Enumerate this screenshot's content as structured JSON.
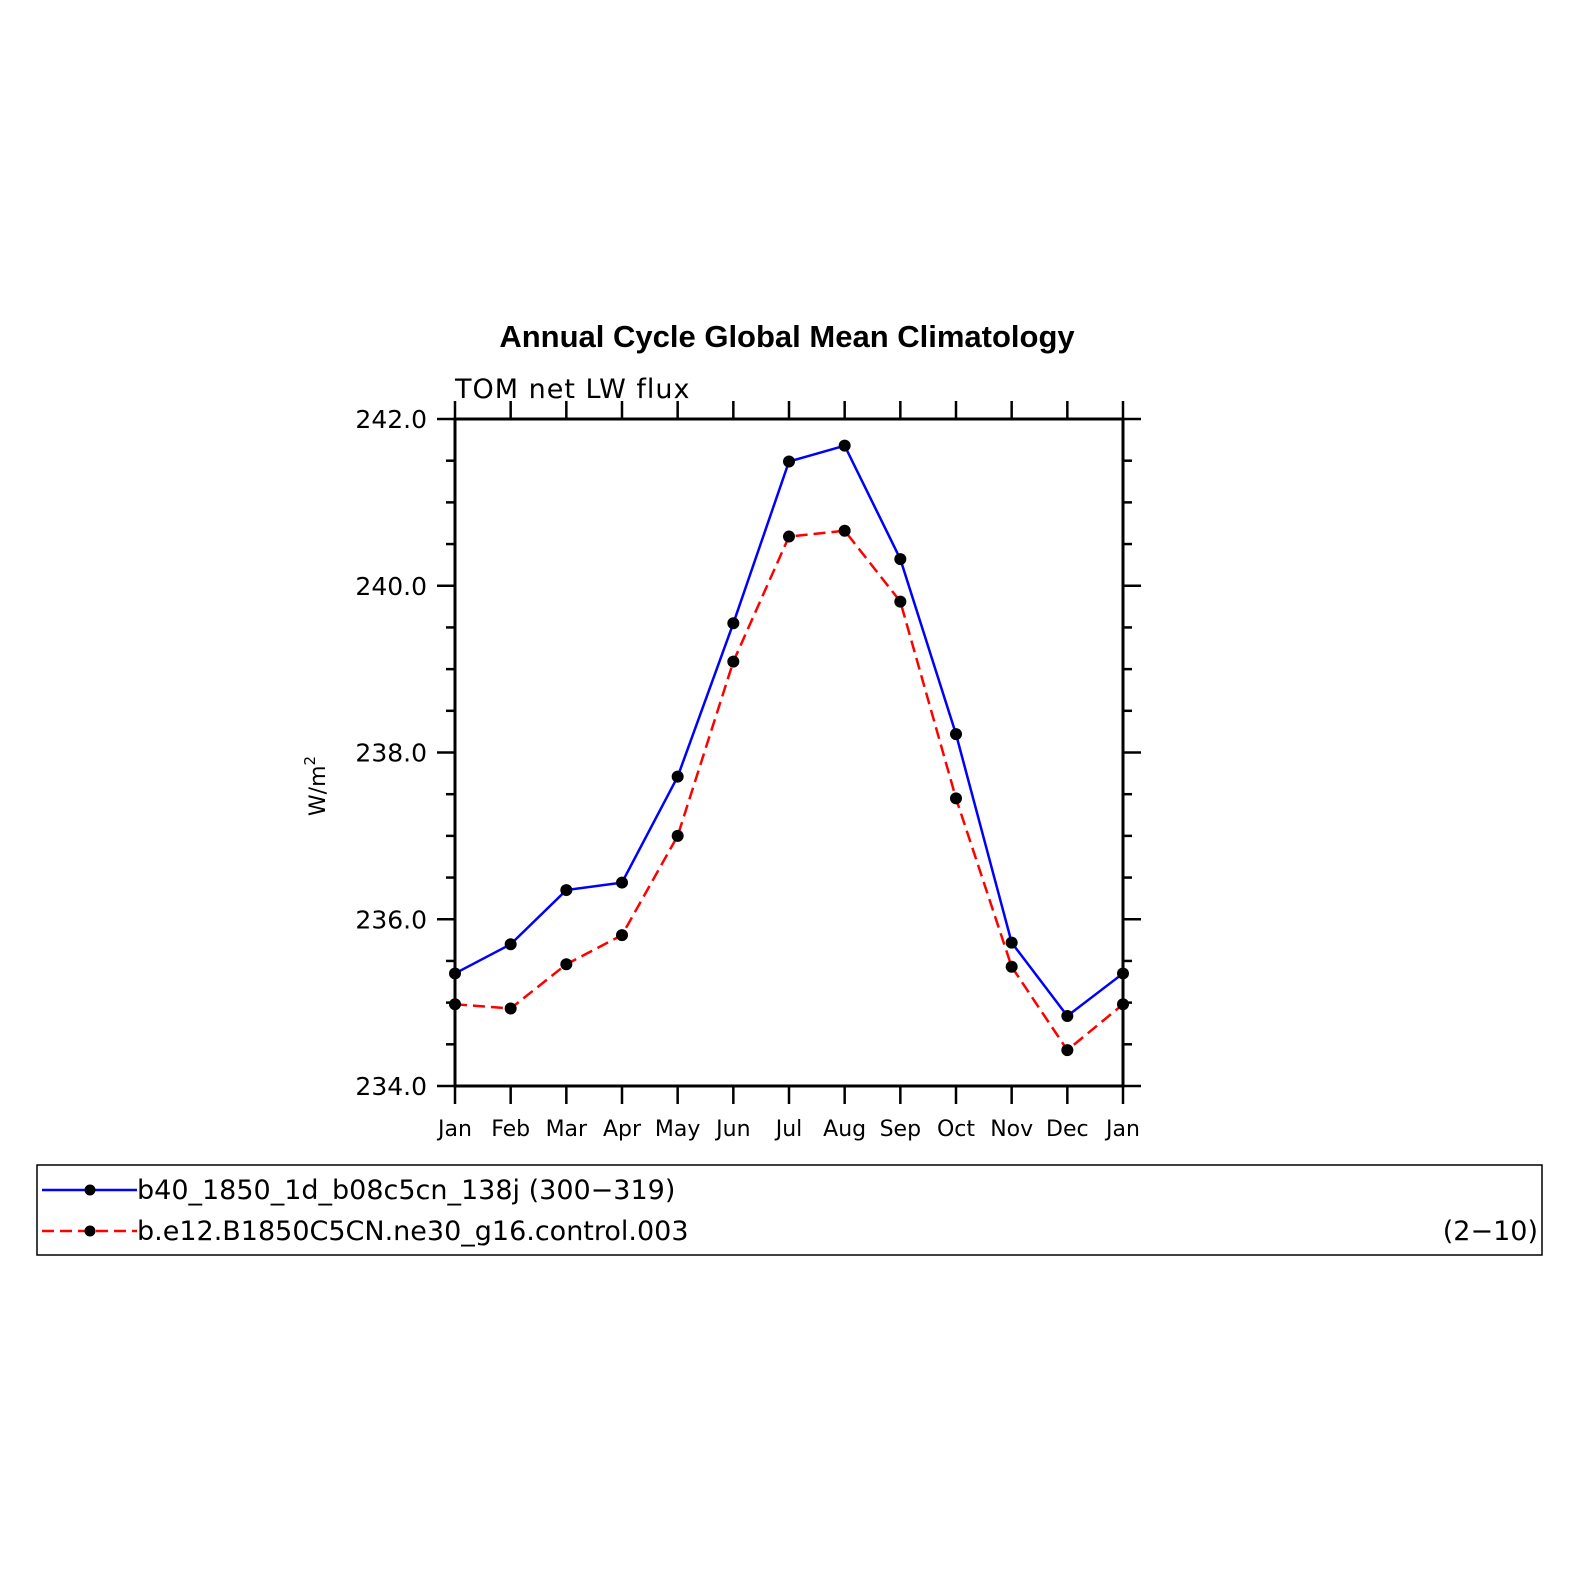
{
  "chart_data": {
    "type": "line",
    "title": "Annual Cycle Global Mean Climatology",
    "subtitle": "TOM net LW flux",
    "ylabel_main": "W/m",
    "ylabel_sup": "2",
    "xlabel": "",
    "categories": [
      "Jan",
      "Feb",
      "Mar",
      "Apr",
      "May",
      "Jun",
      "Jul",
      "Aug",
      "Sep",
      "Oct",
      "Nov",
      "Dec",
      "Jan"
    ],
    "ylim": [
      234.0,
      242.0
    ],
    "yticks": [
      "234.0",
      "236.0",
      "238.0",
      "240.0",
      "242.0"
    ],
    "series": [
      {
        "name": "b40_1850_1d_b08c5cn_138j (300−319)",
        "color": "#0000ff",
        "dash": "solid",
        "values": [
          235.35,
          235.7,
          236.35,
          236.44,
          237.71,
          239.55,
          241.49,
          241.68,
          240.32,
          238.22,
          235.72,
          234.84,
          235.35
        ]
      },
      {
        "name": "b.e12.B1850C5CN.ne30_g16.control.003",
        "color": "#ff0000",
        "dash": "dashed",
        "values": [
          234.98,
          234.93,
          235.46,
          235.81,
          237.0,
          239.09,
          240.59,
          240.66,
          239.81,
          237.45,
          235.43,
          234.43,
          234.98
        ]
      }
    ],
    "legend": {
      "note": "(2−10)",
      "placement": "bottom"
    },
    "grid": false
  }
}
